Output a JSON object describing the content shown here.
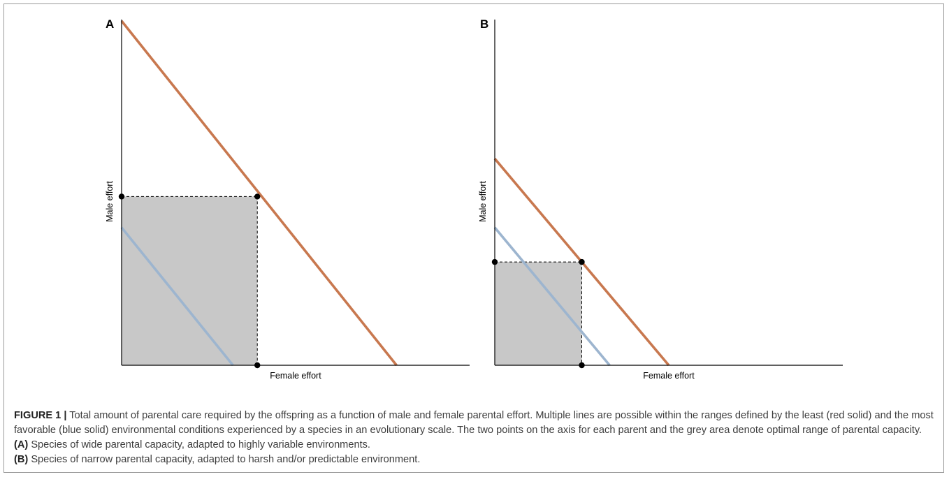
{
  "panels": [
    {
      "label": "A",
      "xlabel": "Female effort",
      "ylabel": "Male effort",
      "chart_data": {
        "type": "line",
        "title": "",
        "xlabel": "Female effort",
        "ylabel": "Male effort",
        "xlim": [
          0,
          1
        ],
        "ylim": [
          0,
          1
        ],
        "grid": false,
        "legend": "none",
        "series": [
          {
            "color": "#c8784f",
            "x": [
              0,
              0.79
            ],
            "y": [
              1.0,
              0
            ]
          },
          {
            "color": "#9db5cf",
            "x": [
              0,
              0.32
            ],
            "y": [
              0.4,
              0
            ]
          }
        ],
        "optimal_area": {
          "female": 0.39,
          "male": 0.49,
          "color": "#c8c8c8"
        }
      }
    },
    {
      "label": "B",
      "xlabel": "Female effort",
      "ylabel": "Male effort",
      "chart_data": {
        "type": "line",
        "title": "",
        "xlabel": "Female effort",
        "ylabel": "Male effort",
        "xlim": [
          0,
          1
        ],
        "ylim": [
          0,
          1
        ],
        "grid": false,
        "legend": "none",
        "series": [
          {
            "color": "#c8784f",
            "x": [
              0,
              0.5
            ],
            "y": [
              0.6,
              0
            ]
          },
          {
            "color": "#9db5cf",
            "x": [
              0,
              0.33
            ],
            "y": [
              0.4,
              0
            ]
          }
        ],
        "optimal_area": {
          "female": 0.25,
          "male": 0.3,
          "color": "#c8c8c8"
        }
      }
    }
  ],
  "caption": {
    "label": "FIGURE 1 |",
    "text1": " Total amount of parental care required by the offspring as a function of male and female parental effort. Multiple lines are possible within the ranges defined by the least (red solid) and the most favorable (blue solid) environmental conditions experienced by a species in an evolutionary scale. The two points on the axis for each parent and the grey area denote optimal range of parental capacity. ",
    "tagA": "(A)",
    "text2": " Species of wide parental capacity, adapted to highly variable environments. ",
    "tagB": "(B)",
    "text3": " Species of narrow parental capacity, adapted to harsh and/or predictable environment."
  }
}
